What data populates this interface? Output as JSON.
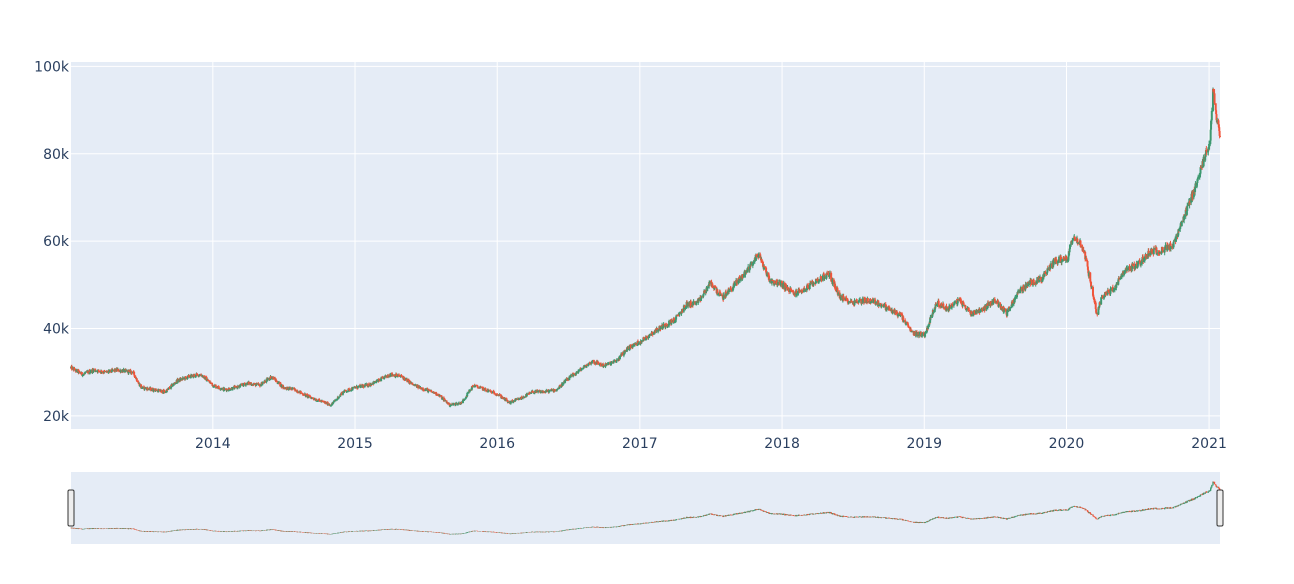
{
  "chart_data": {
    "type": "candlestick",
    "title": "",
    "xlabel": "",
    "ylabel": "",
    "x_range": [
      "2013-01-02",
      "2021-01-29"
    ],
    "ylim": [
      17000,
      101000
    ],
    "y_ticks": [
      20000,
      40000,
      60000,
      80000,
      100000
    ],
    "y_tick_labels": [
      "20k",
      "40k",
      "60k",
      "80k",
      "100k"
    ],
    "x_ticks": [
      "2014-01-01",
      "2015-01-01",
      "2016-01-01",
      "2017-01-01",
      "2018-01-01",
      "2019-01-01",
      "2020-01-01",
      "2021-01-01"
    ],
    "x_tick_labels": [
      "2014",
      "2015",
      "2016",
      "2017",
      "2018",
      "2019",
      "2020",
      "2021"
    ],
    "increasing_color": "#3d9970",
    "decreasing_color": "#ef553b",
    "plot_bgcolor": "#e5ecf6",
    "grid": true,
    "rangeslider": true,
    "close_trend": [
      [
        "2013-01-02",
        31000
      ],
      [
        "2013-02-01",
        29500
      ],
      [
        "2013-03-01",
        30500
      ],
      [
        "2013-04-01",
        30000
      ],
      [
        "2013-05-01",
        30500
      ],
      [
        "2013-06-10",
        30000
      ],
      [
        "2013-07-01",
        26500
      ],
      [
        "2013-08-01",
        26000
      ],
      [
        "2013-09-01",
        25500
      ],
      [
        "2013-10-01",
        28000
      ],
      [
        "2013-11-01",
        29000
      ],
      [
        "2013-12-01",
        29500
      ],
      [
        "2014-01-02",
        27000
      ],
      [
        "2014-02-01",
        26000
      ],
      [
        "2014-03-01",
        26500
      ],
      [
        "2014-04-01",
        27500
      ],
      [
        "2014-05-01",
        27000
      ],
      [
        "2014-06-01",
        29000
      ],
      [
        "2014-07-01",
        26500
      ],
      [
        "2014-08-01",
        26000
      ],
      [
        "2014-09-01",
        24500
      ],
      [
        "2014-10-01",
        23500
      ],
      [
        "2014-11-01",
        22500
      ],
      [
        "2014-12-01",
        25500
      ],
      [
        "2015-01-02",
        26500
      ],
      [
        "2015-02-01",
        27000
      ],
      [
        "2015-03-01",
        28000
      ],
      [
        "2015-04-01",
        29500
      ],
      [
        "2015-05-01",
        29000
      ],
      [
        "2015-06-01",
        27000
      ],
      [
        "2015-07-01",
        26000
      ],
      [
        "2015-08-01",
        25000
      ],
      [
        "2015-09-01",
        22500
      ],
      [
        "2015-10-01",
        23000
      ],
      [
        "2015-11-01",
        27000
      ],
      [
        "2015-12-01",
        26000
      ],
      [
        "2016-01-02",
        25000
      ],
      [
        "2016-02-01",
        23000
      ],
      [
        "2016-03-01",
        24000
      ],
      [
        "2016-04-01",
        25500
      ],
      [
        "2016-05-01",
        25500
      ],
      [
        "2016-06-01",
        26000
      ],
      [
        "2016-07-01",
        28500
      ],
      [
        "2016-08-01",
        30500
      ],
      [
        "2016-09-01",
        32500
      ],
      [
        "2016-10-01",
        31500
      ],
      [
        "2016-11-01",
        32500
      ],
      [
        "2016-12-01",
        35500
      ],
      [
        "2017-01-02",
        37000
      ],
      [
        "2017-02-01",
        39000
      ],
      [
        "2017-03-01",
        40500
      ],
      [
        "2017-04-01",
        42000
      ],
      [
        "2017-05-01",
        45500
      ],
      [
        "2017-06-01",
        46000
      ],
      [
        "2017-07-01",
        50500
      ],
      [
        "2017-08-01",
        47000
      ],
      [
        "2017-09-01",
        50000
      ],
      [
        "2017-10-01",
        53000
      ],
      [
        "2017-11-01",
        57000
      ],
      [
        "2017-12-01",
        51000
      ],
      [
        "2018-01-02",
        50000
      ],
      [
        "2018-02-01",
        48000
      ],
      [
        "2018-03-01",
        49000
      ],
      [
        "2018-04-01",
        51000
      ],
      [
        "2018-05-01",
        52500
      ],
      [
        "2018-06-01",
        47000
      ],
      [
        "2018-07-01",
        46000
      ],
      [
        "2018-08-01",
        46500
      ],
      [
        "2018-09-01",
        46000
      ],
      [
        "2018-10-01",
        44500
      ],
      [
        "2018-11-01",
        43000
      ],
      [
        "2018-12-01",
        39000
      ],
      [
        "2019-01-02",
        38500
      ],
      [
        "2019-02-01",
        46000
      ],
      [
        "2019-03-01",
        44500
      ],
      [
        "2019-04-01",
        46500
      ],
      [
        "2019-05-01",
        43500
      ],
      [
        "2019-06-01",
        44500
      ],
      [
        "2019-07-01",
        46500
      ],
      [
        "2019-08-01",
        43500
      ],
      [
        "2019-09-01",
        48500
      ],
      [
        "2019-10-01",
        50500
      ],
      [
        "2019-11-01",
        51500
      ],
      [
        "2019-12-01",
        55500
      ],
      [
        "2020-01-02",
        56000
      ],
      [
        "2020-01-20",
        61500
      ],
      [
        "2020-02-15",
        58000
      ],
      [
        "2020-03-19",
        43000
      ],
      [
        "2020-04-01",
        47500
      ],
      [
        "2020-05-01",
        49000
      ],
      [
        "2020-06-01",
        53500
      ],
      [
        "2020-07-01",
        54500
      ],
      [
        "2020-08-01",
        57500
      ],
      [
        "2020-09-01",
        58000
      ],
      [
        "2020-10-01",
        59000
      ],
      [
        "2020-11-01",
        66000
      ],
      [
        "2020-12-01",
        73500
      ],
      [
        "2021-01-04",
        83000
      ],
      [
        "2021-01-11",
        96000
      ],
      [
        "2021-01-20",
        88000
      ],
      [
        "2021-01-29",
        84000
      ]
    ]
  }
}
